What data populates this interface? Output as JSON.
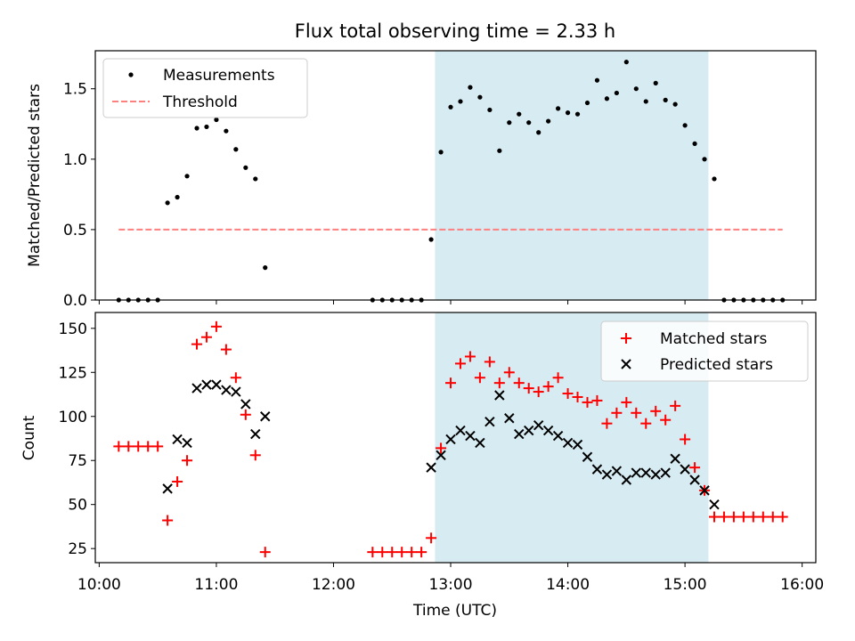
{
  "figure": {
    "title": "Flux total observing time = 2.33 h",
    "xlabel": "Time (UTC)",
    "xticks": [
      "10:00",
      "11:00",
      "12:00",
      "13:00",
      "14:00",
      "15:00",
      "16:00"
    ]
  },
  "chart_data": [
    {
      "type": "scatter",
      "ylabel": "Matched/Predicted stars",
      "xlim": [
        "09:58",
        "16:07"
      ],
      "ylim": [
        0,
        1.77
      ],
      "yticks": [
        "0.0",
        "0.5",
        "1.0",
        "1.5"
      ],
      "legend": {
        "position": "top-left",
        "entries": [
          "Measurements",
          "Threshold"
        ]
      },
      "shaded_interval": {
        "x": [
          "12:52",
          "15:12"
        ],
        "color": "#add8e6"
      },
      "threshold": {
        "name": "Threshold",
        "y": 0.5,
        "x": [
          "10:10",
          "15:50"
        ],
        "color": "#ff7f7f",
        "style": "dashed"
      },
      "series": [
        {
          "name": "Measurements",
          "color": "#000000",
          "marker": "dot",
          "points": [
            [
              "10:10",
              0
            ],
            [
              "10:15",
              0
            ],
            [
              "10:20",
              0
            ],
            [
              "10:25",
              0
            ],
            [
              "10:30",
              0
            ],
            [
              "10:35",
              0.69
            ],
            [
              "10:40",
              0.73
            ],
            [
              "10:45",
              0.88
            ],
            [
              "10:50",
              1.22
            ],
            [
              "10:55",
              1.23
            ],
            [
              "11:00",
              1.28
            ],
            [
              "11:05",
              1.2
            ],
            [
              "11:10",
              1.07
            ],
            [
              "11:15",
              0.94
            ],
            [
              "11:20",
              0.86
            ],
            [
              "11:25",
              0.23
            ],
            [
              "12:20",
              0
            ],
            [
              "12:25",
              0
            ],
            [
              "12:30",
              0
            ],
            [
              "12:35",
              0
            ],
            [
              "12:40",
              0
            ],
            [
              "12:45",
              0
            ],
            [
              "12:50",
              0.43
            ],
            [
              "12:55",
              1.05
            ],
            [
              "13:00",
              1.37
            ],
            [
              "13:05",
              1.41
            ],
            [
              "13:10",
              1.51
            ],
            [
              "13:15",
              1.44
            ],
            [
              "13:20",
              1.35
            ],
            [
              "13:25",
              1.06
            ],
            [
              "13:30",
              1.26
            ],
            [
              "13:35",
              1.32
            ],
            [
              "13:40",
              1.26
            ],
            [
              "13:45",
              1.19
            ],
            [
              "13:50",
              1.27
            ],
            [
              "13:55",
              1.36
            ],
            [
              "14:00",
              1.33
            ],
            [
              "14:05",
              1.32
            ],
            [
              "14:10",
              1.4
            ],
            [
              "14:15",
              1.56
            ],
            [
              "14:20",
              1.43
            ],
            [
              "14:25",
              1.47
            ],
            [
              "14:30",
              1.69
            ],
            [
              "14:35",
              1.5
            ],
            [
              "14:40",
              1.41
            ],
            [
              "14:45",
              1.54
            ],
            [
              "14:50",
              1.42
            ],
            [
              "14:55",
              1.39
            ],
            [
              "15:00",
              1.24
            ],
            [
              "15:05",
              1.11
            ],
            [
              "15:10",
              1.0
            ],
            [
              "15:15",
              0.86
            ],
            [
              "15:20",
              0
            ],
            [
              "15:25",
              0
            ],
            [
              "15:30",
              0
            ],
            [
              "15:35",
              0
            ],
            [
              "15:40",
              0
            ],
            [
              "15:45",
              0
            ],
            [
              "15:50",
              0
            ]
          ]
        }
      ]
    },
    {
      "type": "scatter",
      "ylabel": "Count",
      "xlim": [
        "09:58",
        "16:07"
      ],
      "ylim": [
        17,
        159
      ],
      "yticks": [
        "25",
        "50",
        "75",
        "100",
        "125",
        "150"
      ],
      "legend": {
        "position": "top-right",
        "entries": [
          "Matched stars",
          "Predicted stars"
        ]
      },
      "shaded_interval": {
        "x": [
          "12:52",
          "15:12"
        ],
        "color": "#add8e6"
      },
      "series": [
        {
          "name": "Matched stars",
          "color": "#ff0000",
          "marker": "plus",
          "points": [
            [
              "10:10",
              83
            ],
            [
              "10:15",
              83
            ],
            [
              "10:20",
              83
            ],
            [
              "10:25",
              83
            ],
            [
              "10:30",
              83
            ],
            [
              "10:35",
              41
            ],
            [
              "10:40",
              63
            ],
            [
              "10:45",
              75
            ],
            [
              "10:50",
              141
            ],
            [
              "10:55",
              145
            ],
            [
              "11:00",
              151
            ],
            [
              "11:05",
              138
            ],
            [
              "11:10",
              122
            ],
            [
              "11:15",
              101
            ],
            [
              "11:20",
              78
            ],
            [
              "11:25",
              23
            ],
            [
              "12:20",
              23
            ],
            [
              "12:25",
              23
            ],
            [
              "12:30",
              23
            ],
            [
              "12:35",
              23
            ],
            [
              "12:40",
              23
            ],
            [
              "12:45",
              23
            ],
            [
              "12:50",
              31
            ],
            [
              "12:55",
              82
            ],
            [
              "13:00",
              119
            ],
            [
              "13:05",
              130
            ],
            [
              "13:10",
              134
            ],
            [
              "13:15",
              122
            ],
            [
              "13:20",
              131
            ],
            [
              "13:25",
              119
            ],
            [
              "13:30",
              125
            ],
            [
              "13:35",
              119
            ],
            [
              "13:40",
              116
            ],
            [
              "13:45",
              114
            ],
            [
              "13:50",
              117
            ],
            [
              "13:55",
              122
            ],
            [
              "14:00",
              113
            ],
            [
              "14:05",
              111
            ],
            [
              "14:10",
              108
            ],
            [
              "14:15",
              109
            ],
            [
              "14:20",
              96
            ],
            [
              "14:25",
              102
            ],
            [
              "14:30",
              108
            ],
            [
              "14:35",
              102
            ],
            [
              "14:40",
              96
            ],
            [
              "14:45",
              103
            ],
            [
              "14:50",
              98
            ],
            [
              "14:55",
              106
            ],
            [
              "15:00",
              87
            ],
            [
              "15:05",
              71
            ],
            [
              "15:10",
              58
            ],
            [
              "15:15",
              43
            ],
            [
              "15:20",
              43
            ],
            [
              "15:25",
              43
            ],
            [
              "15:30",
              43
            ],
            [
              "15:35",
              43
            ],
            [
              "15:40",
              43
            ],
            [
              "15:45",
              43
            ],
            [
              "15:50",
              43
            ]
          ]
        },
        {
          "name": "Predicted stars",
          "color": "#000000",
          "marker": "x",
          "points": [
            [
              "10:35",
              59
            ],
            [
              "10:40",
              87
            ],
            [
              "10:45",
              85
            ],
            [
              "10:50",
              116
            ],
            [
              "10:55",
              118
            ],
            [
              "11:00",
              118
            ],
            [
              "11:05",
              115
            ],
            [
              "11:10",
              114
            ],
            [
              "11:15",
              107
            ],
            [
              "11:20",
              90
            ],
            [
              "11:25",
              100
            ],
            [
              "12:50",
              71
            ],
            [
              "12:55",
              78
            ],
            [
              "13:00",
              87
            ],
            [
              "13:05",
              92
            ],
            [
              "13:10",
              89
            ],
            [
              "13:15",
              85
            ],
            [
              "13:20",
              97
            ],
            [
              "13:25",
              112
            ],
            [
              "13:30",
              99
            ],
            [
              "13:35",
              90
            ],
            [
              "13:40",
              92
            ],
            [
              "13:45",
              95
            ],
            [
              "13:50",
              92
            ],
            [
              "13:55",
              89
            ],
            [
              "14:00",
              85
            ],
            [
              "14:05",
              84
            ],
            [
              "14:10",
              77
            ],
            [
              "14:15",
              70
            ],
            [
              "14:20",
              67
            ],
            [
              "14:25",
              69
            ],
            [
              "14:30",
              64
            ],
            [
              "14:35",
              68
            ],
            [
              "14:40",
              68
            ],
            [
              "14:45",
              67
            ],
            [
              "14:50",
              68
            ],
            [
              "14:55",
              76
            ],
            [
              "15:00",
              70
            ],
            [
              "15:05",
              64
            ],
            [
              "15:10",
              58
            ],
            [
              "15:15",
              50
            ]
          ]
        }
      ]
    }
  ]
}
